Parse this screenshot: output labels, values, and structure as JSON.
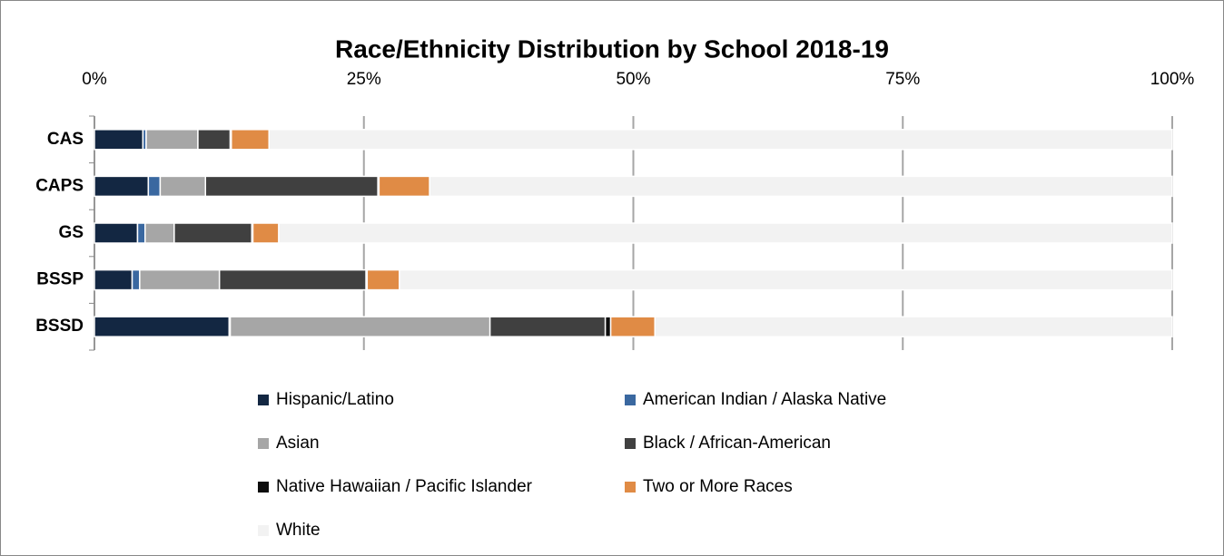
{
  "chart_data": {
    "type": "stacked-bar-horizontal",
    "title": "Race/Ethnicity Distribution by School 2018-19",
    "categories": [
      "CAS",
      "CAPS",
      "GS",
      "BSSP",
      "BSSD"
    ],
    "series": [
      {
        "name": "Hispanic/Latino",
        "color": "#132742",
        "values": [
          4.5,
          5.0,
          4.0,
          3.5,
          12.5
        ]
      },
      {
        "name": "American Indian / Alaska Native",
        "color": "#3a68a0",
        "values": [
          0.3,
          1.1,
          0.7,
          0.7,
          0.1
        ]
      },
      {
        "name": "Asian",
        "color": "#a6a6a6",
        "values": [
          4.8,
          4.2,
          2.7,
          7.4,
          24.1
        ]
      },
      {
        "name": "Black / African-American",
        "color": "#404040",
        "values": [
          3.0,
          16.0,
          7.2,
          13.6,
          10.7
        ]
      },
      {
        "name": "Native Hawaiian / Pacific Islander",
        "color": "#0d0d0d",
        "values": [
          0.1,
          0.1,
          0.1,
          0.1,
          0.5
        ]
      },
      {
        "name": "Two or More Races",
        "color": "#e08b45",
        "values": [
          3.5,
          4.7,
          2.4,
          3.0,
          4.1
        ]
      },
      {
        "name": "White",
        "color": "#f2f2f2",
        "values": [
          83.8,
          68.9,
          82.9,
          71.7,
          48.0
        ]
      }
    ],
    "xlim": [
      0,
      100
    ],
    "xticks": [
      {
        "value": 0,
        "label": "0%"
      },
      {
        "value": 25,
        "label": "25%"
      },
      {
        "value": 50,
        "label": "50%"
      },
      {
        "value": 75,
        "label": "75%"
      },
      {
        "value": 100,
        "label": "100%"
      }
    ],
    "grid": true,
    "legend": "bottom"
  }
}
